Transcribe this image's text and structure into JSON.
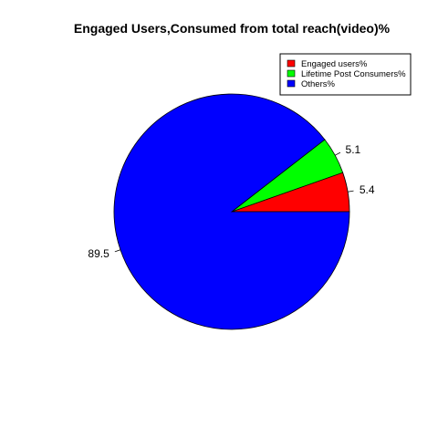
{
  "chart_data": {
    "type": "pie",
    "title": "Engaged Users,Consumed from total reach(video)%",
    "slices": [
      {
        "label": "Engaged users%",
        "value": 5.4,
        "display": "5.4",
        "color": "#ff0000"
      },
      {
        "label": "Lifetime Post Consumers%",
        "value": 5.1,
        "display": "5.1",
        "color": "#00ff00"
      },
      {
        "label": "Others%",
        "value": 89.5,
        "display": "89.5",
        "color": "#0000ff"
      }
    ],
    "start_angle_deg": 0,
    "direction": "counterclockwise",
    "legend": {
      "position": "top-right"
    }
  }
}
